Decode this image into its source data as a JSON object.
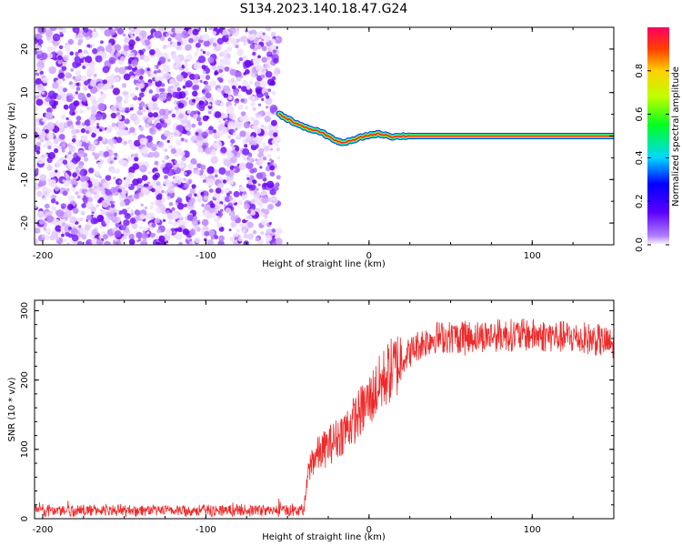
{
  "title": "S134.2023.140.18.47.G24",
  "chart_data": [
    {
      "type": "heatmap",
      "xlabel": "Height of straight line (km)",
      "ylabel": "Frequency (Hz)",
      "xlim": [
        -205,
        150
      ],
      "ylim": [
        -25,
        25
      ],
      "xticks": [
        -200,
        -100,
        0,
        100
      ],
      "yticks": [
        -20,
        -10,
        0,
        10,
        20
      ],
      "colorbar": {
        "label": "Normalized spectral amplitude",
        "range": [
          0,
          1
        ],
        "ticks": [
          "0.0",
          "0.2",
          "0.4",
          "0.6",
          "0.8"
        ],
        "colormap": [
          "#ffffff",
          "#7a00ff",
          "#0000ff",
          "#00e0ff",
          "#00ff00",
          "#ffff00",
          "#ff8000",
          "#ff0040"
        ]
      },
      "noise_region_x": [
        -205,
        -55
      ],
      "signal_track": {
        "x": [
          -55,
          -50,
          -45,
          -40,
          -35,
          -30,
          -25,
          -20,
          -15,
          -10,
          -5,
          0,
          5,
          10,
          15,
          20,
          30,
          50,
          80,
          110,
          150
        ],
        "y": [
          5,
          4,
          3,
          2,
          1.5,
          1,
          0,
          -1.2,
          -1.5,
          -1,
          -0.3,
          0.2,
          0.5,
          0.3,
          -0.2,
          0,
          0,
          0,
          0,
          0,
          0
        ]
      }
    },
    {
      "type": "line",
      "xlabel": "Height of straight line (km)",
      "ylabel": "SNR (10 * v/v)",
      "xlim": [
        -205,
        150
      ],
      "ylim": [
        0,
        315
      ],
      "xticks": [
        -200,
        -100,
        0,
        100
      ],
      "yticks": [
        0,
        100,
        200,
        300
      ],
      "color": "#ee2a2a",
      "series_envelope": {
        "x": [
          -205,
          -150,
          -100,
          -50,
          -40,
          -38,
          -35,
          -30,
          -20,
          -10,
          0,
          10,
          20,
          30,
          40,
          60,
          80,
          100,
          120,
          140,
          150
        ],
        "y": [
          12,
          12,
          12,
          12,
          12,
          55,
          85,
          95,
          115,
          140,
          170,
          205,
          230,
          250,
          262,
          262,
          265,
          265,
          262,
          258,
          250
        ]
      }
    }
  ]
}
